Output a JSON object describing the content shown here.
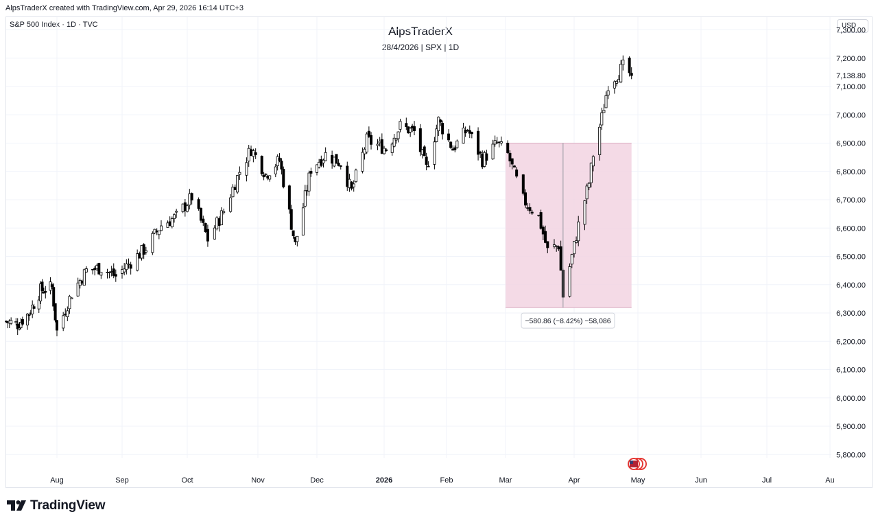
{
  "attribution": "AlpsTraderX created with TradingView.com, Apr 29, 2026 16:14 UTC+3",
  "symbol_line": "S&P 500 Index · 1D · TVC",
  "currency": "USD",
  "brand": "TradingView",
  "flag_icon": "us-flag-icon",
  "colors": {
    "grid": "#f0f3fa",
    "candle_up": "#ffffff",
    "candle_down": "#000000",
    "candle_outline": "#000000",
    "range_fill": "#f2d4e2",
    "range_line": "#d8a9bf"
  },
  "chart_data": {
    "type": "candlestick",
    "title": "AlpsTraderX",
    "subtitle": "28/4/2026 | SPX | 1D",
    "yrange": [
      5740,
      7345
    ],
    "y_ticks": [
      5800,
      5900,
      6000,
      6100,
      6200,
      6300,
      6400,
      6500,
      6600,
      6700,
      6800,
      6900,
      7000,
      7100,
      7200,
      7300
    ],
    "y_tick_labels": [
      "5,800.00",
      "5,900.00",
      "6,000.00",
      "6,100.00",
      "6,200.00",
      "6,300.00",
      "6,400.00",
      "6,500.00",
      "6,600.00",
      "6,700.00",
      "6,800.00",
      "6,900.00",
      "7,000.00",
      "7,100.00",
      "7,200.00",
      "7,300.00"
    ],
    "last_price": 7138.8,
    "last_price_label": "7,138.80",
    "x_labels": [
      {
        "date": "2025-08-01",
        "label": "Aug",
        "bold": false
      },
      {
        "date": "2025-09-01",
        "label": "Sep",
        "bold": false
      },
      {
        "date": "2025-10-01",
        "label": "Oct",
        "bold": false
      },
      {
        "date": "2025-11-01",
        "label": "Nov",
        "bold": false
      },
      {
        "date": "2025-12-01",
        "label": "Dec",
        "bold": false
      },
      {
        "date": "2026-01-01",
        "label": "2026",
        "bold": true
      },
      {
        "date": "2026-02-01",
        "label": "Feb",
        "bold": false
      },
      {
        "date": "2026-03-01",
        "label": "Mar",
        "bold": false
      },
      {
        "date": "2026-04-01",
        "label": "Apr",
        "bold": false
      },
      {
        "date": "2026-05-01",
        "label": "May",
        "bold": false
      },
      {
        "date": "2026-06-01",
        "label": "Jun",
        "bold": false
      },
      {
        "date": "2026-07-01",
        "label": "Jul",
        "bold": false
      },
      {
        "date": "2026-08-01",
        "label": "Au",
        "bold": false
      }
    ],
    "closes": [
      {
        "date": "2025-07-01",
        "close": 6270
      },
      {
        "date": "2025-07-08",
        "close": 6260
      },
      {
        "date": "2025-07-15",
        "close": 6300
      },
      {
        "date": "2025-07-22",
        "close": 6380
      },
      {
        "date": "2025-07-29",
        "close": 6390
      },
      {
        "date": "2025-08-01",
        "close": 6235
      },
      {
        "date": "2025-08-08",
        "close": 6370
      },
      {
        "date": "2025-08-15",
        "close": 6450
      },
      {
        "date": "2025-08-22",
        "close": 6460
      },
      {
        "date": "2025-08-29",
        "close": 6430
      },
      {
        "date": "2025-09-05",
        "close": 6480
      },
      {
        "date": "2025-09-12",
        "close": 6530
      },
      {
        "date": "2025-09-19",
        "close": 6610
      },
      {
        "date": "2025-09-26",
        "close": 6640
      },
      {
        "date": "2025-10-03",
        "close": 6710
      },
      {
        "date": "2025-10-10",
        "close": 6560
      },
      {
        "date": "2025-10-17",
        "close": 6660
      },
      {
        "date": "2025-10-24",
        "close": 6800
      },
      {
        "date": "2025-10-29",
        "close": 6880
      },
      {
        "date": "2025-11-05",
        "close": 6790
      },
      {
        "date": "2025-11-12",
        "close": 6840
      },
      {
        "date": "2025-11-20",
        "close": 6540
      },
      {
        "date": "2025-11-28",
        "close": 6810
      },
      {
        "date": "2025-12-05",
        "close": 6860
      },
      {
        "date": "2025-12-12",
        "close": 6830
      },
      {
        "date": "2025-12-17",
        "close": 6730
      },
      {
        "date": "2025-12-24",
        "close": 6910
      },
      {
        "date": "2026-01-02",
        "close": 6880
      },
      {
        "date": "2026-01-09",
        "close": 6960
      },
      {
        "date": "2026-01-16",
        "close": 6940
      },
      {
        "date": "2026-01-22",
        "close": 6810
      },
      {
        "date": "2026-01-28",
        "close": 6980
      },
      {
        "date": "2026-02-04",
        "close": 6880
      },
      {
        "date": "2026-02-11",
        "close": 6950
      },
      {
        "date": "2026-02-18",
        "close": 6840
      },
      {
        "date": "2026-02-25",
        "close": 6900
      },
      {
        "date": "2026-03-02",
        "close": 6860
      },
      {
        "date": "2026-03-09",
        "close": 6700
      },
      {
        "date": "2026-03-16",
        "close": 6640
      },
      {
        "date": "2026-03-20",
        "close": 6520
      },
      {
        "date": "2026-03-25",
        "close": 6540
      },
      {
        "date": "2026-03-27",
        "close": 6360
      },
      {
        "date": "2026-03-31",
        "close": 6500
      },
      {
        "date": "2026-04-03",
        "close": 6610
      },
      {
        "date": "2026-04-08",
        "close": 6760
      },
      {
        "date": "2026-04-10",
        "close": 6860
      },
      {
        "date": "2026-04-14",
        "close": 6990
      },
      {
        "date": "2026-04-17",
        "close": 7110
      },
      {
        "date": "2026-04-21",
        "close": 7140
      },
      {
        "date": "2026-04-24",
        "close": 7170
      },
      {
        "date": "2026-04-28",
        "close": 7138.8
      }
    ],
    "measure": {
      "start_date": "2026-03-01",
      "end_date": "2026-04-28",
      "top_price": 6900,
      "bottom_price": 6319,
      "label": "−580.86 (−8.42%) −58,086"
    }
  }
}
